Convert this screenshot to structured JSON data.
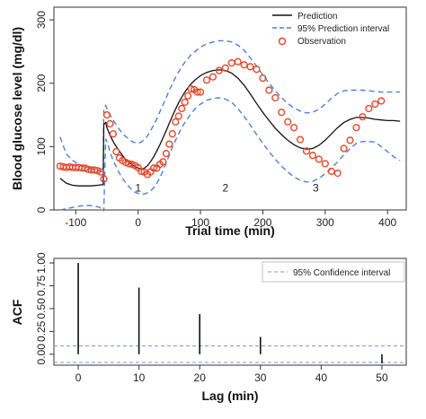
{
  "chart_data": [
    {
      "type": "line",
      "xlabel": "Trial time (min)",
      "ylabel": "Blood glucose level (mg/dl)",
      "xlim": [
        -135,
        430
      ],
      "ylim": [
        0,
        320
      ],
      "xticks": [
        "-100",
        "0",
        "100",
        "200",
        "300",
        "400"
      ],
      "xtick_values": [
        -100,
        0,
        100,
        200,
        300,
        400
      ],
      "yticks": [
        "0",
        "100",
        "200",
        "300"
      ],
      "ytick_values": [
        0,
        100,
        200,
        300
      ],
      "grid": false,
      "legend_position": "top-right",
      "legend": [
        {
          "label": "Prediction",
          "style": "solid-line",
          "color": "#111111"
        },
        {
          "label": "95% Prediction interval",
          "style": "dashed-line",
          "color": "#4f7fd6"
        },
        {
          "label": "Observation",
          "style": "open-circle",
          "color": "#e2482a"
        }
      ],
      "annotations": [
        {
          "text": "1",
          "x": 0,
          "y": 35
        },
        {
          "text": "2",
          "x": 140,
          "y": 35
        },
        {
          "text": "3",
          "x": 285,
          "y": 35
        }
      ],
      "series": [
        {
          "name": "Prediction",
          "color": "#111111",
          "x": [
            -125,
            -115,
            -105,
            -95,
            -85,
            -75,
            -65,
            -56,
            -55,
            -52,
            -50,
            -45,
            -40,
            -35,
            -30,
            -25,
            -20,
            -15,
            -10,
            -5,
            0,
            5,
            10,
            15,
            20,
            25,
            30,
            35,
            40,
            45,
            50,
            55,
            60,
            65,
            70,
            75,
            80,
            85,
            90,
            95,
            100,
            110,
            120,
            130,
            140,
            150,
            160,
            170,
            180,
            190,
            200,
            210,
            220,
            230,
            240,
            250,
            260,
            270,
            280,
            290,
            300,
            310,
            320,
            330,
            340,
            350,
            360,
            370,
            380,
            390,
            400,
            410,
            420
          ],
          "y": [
            50,
            42,
            39,
            38,
            38,
            38,
            39,
            40,
            135,
            138,
            130,
            118,
            108,
            100,
            93,
            86,
            80,
            75,
            72,
            68,
            66,
            65,
            66,
            70,
            76,
            84,
            93,
            103,
            114,
            125,
            137,
            148,
            159,
            169,
            178,
            186,
            193,
            199,
            204,
            208,
            212,
            217,
            220,
            221,
            220,
            216,
            208,
            197,
            183,
            168,
            154,
            141,
            129,
            119,
            110,
            103,
            98,
            96,
            97,
            102,
            110,
            120,
            130,
            138,
            143,
            146,
            146,
            145,
            143,
            142,
            141,
            141,
            140
          ]
        },
        {
          "name": "95% Prediction interval",
          "color": "#4f7fd6",
          "bound": "upper",
          "x": [
            -125,
            -115,
            -105,
            -95,
            -85,
            -75,
            -65,
            -56,
            -55,
            -52,
            -50,
            -45,
            -40,
            -35,
            -30,
            -25,
            -20,
            -15,
            -10,
            -5,
            0,
            5,
            10,
            15,
            20,
            25,
            30,
            35,
            40,
            45,
            50,
            55,
            60,
            65,
            70,
            75,
            80,
            85,
            90,
            95,
            100,
            110,
            120,
            130,
            140,
            150,
            160,
            170,
            180,
            190,
            200,
            210,
            220,
            230,
            240,
            250,
            260,
            270,
            280,
            290,
            300,
            310,
            320,
            330,
            340,
            350,
            360,
            370,
            380,
            390,
            400,
            410,
            420
          ],
          "y": [
            115,
            88,
            78,
            72,
            68,
            64,
            62,
            60,
            160,
            165,
            160,
            150,
            142,
            134,
            127,
            121,
            116,
            112,
            108,
            106,
            105,
            107,
            111,
            117,
            125,
            134,
            144,
            155,
            166,
            177,
            189,
            199,
            209,
            218,
            226,
            233,
            239,
            245,
            249,
            253,
            257,
            262,
            265,
            267,
            267,
            265,
            260,
            252,
            240,
            227,
            213,
            200,
            188,
            177,
            168,
            161,
            156,
            153,
            154,
            159,
            167,
            176,
            184,
            188,
            189,
            189,
            189,
            188,
            187,
            186,
            186,
            186,
            186
          ]
        },
        {
          "name": "95% Prediction interval",
          "color": "#4f7fd6",
          "bound": "lower",
          "x": [
            -125,
            -115,
            -105,
            -95,
            -85,
            -75,
            -65,
            -56,
            -55,
            -52,
            -50,
            -45,
            -40,
            -35,
            -30,
            -25,
            -20,
            -15,
            -10,
            -5,
            0,
            5,
            10,
            15,
            20,
            25,
            30,
            35,
            40,
            45,
            50,
            55,
            60,
            65,
            70,
            75,
            80,
            85,
            90,
            95,
            100,
            110,
            120,
            130,
            140,
            150,
            160,
            170,
            180,
            190,
            200,
            210,
            220,
            230,
            240,
            250,
            260,
            270,
            280,
            290,
            300,
            310,
            320,
            330,
            340,
            350,
            360,
            370,
            380,
            390,
            400,
            410,
            420
          ],
          "y": [
            0,
            2,
            4,
            6,
            7,
            7,
            5,
            2,
            -2,
            112,
            108,
            92,
            78,
            68,
            58,
            50,
            43,
            37,
            32,
            28,
            26,
            25,
            25,
            27,
            30,
            35,
            42,
            51,
            62,
            74,
            87,
            99,
            110,
            120,
            130,
            138,
            145,
            152,
            158,
            163,
            167,
            173,
            176,
            177,
            175,
            170,
            160,
            148,
            134,
            119,
            105,
            92,
            80,
            69,
            60,
            52,
            47,
            44,
            45,
            50,
            57,
            66,
            76,
            87,
            97,
            105,
            108,
            108,
            107,
            100,
            92,
            84,
            78
          ]
        },
        {
          "name": "Observation",
          "color": "#e2482a",
          "x": [
            -125,
            -120,
            -115,
            -110,
            -105,
            -100,
            -95,
            -90,
            -85,
            -80,
            -75,
            -70,
            -65,
            -60,
            -55,
            -50,
            -45,
            -40,
            -35,
            -30,
            -25,
            -20,
            -15,
            -10,
            -5,
            0,
            5,
            10,
            15,
            20,
            25,
            30,
            35,
            40,
            45,
            50,
            55,
            60,
            65,
            70,
            75,
            80,
            85,
            90,
            95,
            100,
            110,
            120,
            130,
            140,
            150,
            160,
            170,
            180,
            190,
            200,
            210,
            220,
            230,
            240,
            250,
            260,
            270,
            280,
            290,
            300,
            310,
            320,
            330,
            340,
            350,
            360,
            370,
            380,
            390
          ],
          "y": [
            69,
            68,
            67,
            68,
            67,
            67,
            67,
            66,
            66,
            64,
            63,
            63,
            62,
            60,
            49,
            150,
            136,
            120,
            92,
            82,
            78,
            75,
            73,
            72,
            70,
            67,
            61,
            60,
            56,
            60,
            66,
            66,
            72,
            76,
            89,
            104,
            120,
            139,
            148,
            160,
            170,
            180,
            191,
            190,
            186,
            186,
            205,
            210,
            220,
            224,
            232,
            234,
            229,
            226,
            222,
            208,
            189,
            177,
            154,
            139,
            130,
            111,
            93,
            86,
            80,
            73,
            61,
            58,
            97,
            110,
            130,
            147,
            160,
            167,
            172
          ]
        }
      ]
    },
    {
      "type": "bar",
      "xlabel": "Lag (min)",
      "ylabel": "ACF",
      "xlim": [
        -4,
        54
      ],
      "ylim": [
        -0.12,
        1.05
      ],
      "xticks": [
        "0",
        "10",
        "20",
        "30",
        "40",
        "50"
      ],
      "xtick_values": [
        0,
        10,
        20,
        30,
        40,
        50
      ],
      "yticks": [
        "0.00",
        "0.25",
        "0.50",
        "0.75",
        "1.00"
      ],
      "ytick_values": [
        0,
        0.25,
        0.5,
        0.75,
        1.0
      ],
      "legend_position": "top-right",
      "legend": [
        {
          "label": "95% Confidence interval",
          "style": "dashed-line",
          "color": "#7f8fd8"
        }
      ],
      "confidence_interval": [
        -0.09,
        0.09
      ],
      "series": [
        {
          "name": "ACF",
          "color": "#111111",
          "x": [
            0,
            10,
            20,
            30,
            40,
            50
          ],
          "values": [
            1.0,
            0.73,
            0.44,
            0.19,
            0.0,
            -0.1
          ]
        }
      ]
    }
  ]
}
